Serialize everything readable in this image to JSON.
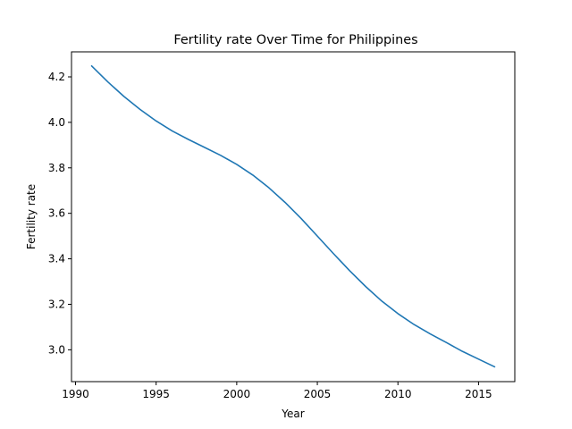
{
  "chart_data": {
    "type": "line",
    "title": "Fertility rate Over Time for Philippines",
    "xlabel": "Year",
    "ylabel": "Fertility rate",
    "xlim": [
      1989.75,
      2017.25
    ],
    "ylim": [
      2.86,
      4.31
    ],
    "xticks": [
      1990,
      1995,
      2000,
      2005,
      2010,
      2015
    ],
    "yticks": [
      3.0,
      3.2,
      3.4,
      3.6,
      3.8,
      4.0,
      4.2
    ],
    "grid": false,
    "series": [
      {
        "color": "#1f77b4",
        "x": [
          1991,
          1992,
          1993,
          1994,
          1995,
          1996,
          1997,
          1998,
          1999,
          2000,
          2001,
          2002,
          2003,
          2004,
          2005,
          2006,
          2007,
          2008,
          2009,
          2010,
          2011,
          2012,
          2013,
          2014,
          2015,
          2016
        ],
        "y": [
          4.248,
          4.178,
          4.114,
          4.057,
          4.006,
          3.962,
          3.925,
          3.89,
          3.855,
          3.815,
          3.768,
          3.712,
          3.648,
          3.577,
          3.5,
          3.423,
          3.348,
          3.278,
          3.214,
          3.159,
          3.111,
          3.07,
          3.032,
          2.993,
          2.959,
          2.925
        ]
      }
    ]
  }
}
